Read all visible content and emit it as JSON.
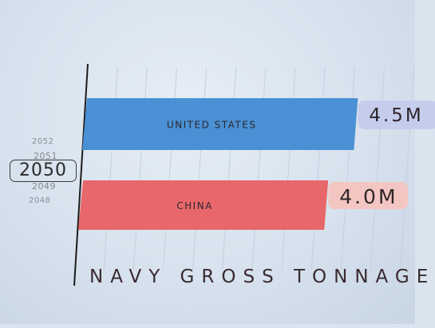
{
  "years": {
    "above_far": "2052",
    "above_near": "2051",
    "current": "2050",
    "below_near": "2049",
    "below_far": "2048"
  },
  "axis_title": "NAVY GROSS TONNAGE",
  "chart_data": {
    "type": "bar",
    "orientation": "horizontal",
    "categories": [
      "UNITED STATES",
      "CHINA"
    ],
    "values": [
      4.5,
      4.0
    ],
    "value_labels": [
      "4.5M",
      "4.0M"
    ],
    "unit": "M",
    "xlabel": "NAVY GROSS TONNAGE",
    "xlim": [
      0,
      5.5
    ],
    "grid": true,
    "bar_colors": [
      "#4a90d4",
      "#e8676a"
    ],
    "label_box_colors": [
      "#c6cdec",
      "#f4c6c2"
    ]
  }
}
